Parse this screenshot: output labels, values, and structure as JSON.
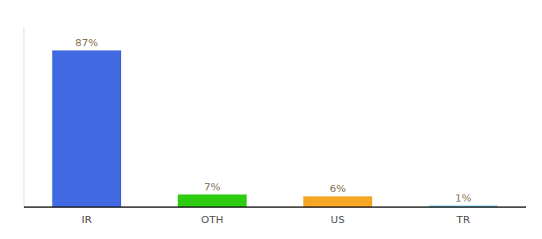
{
  "chart_data": {
    "type": "bar",
    "categories": [
      "IR",
      "OTH",
      "US",
      "TR"
    ],
    "values": [
      87,
      7,
      6,
      1
    ],
    "value_labels": [
      "87%",
      "7%",
      "6%",
      "1%"
    ],
    "colors": [
      "#4169e1",
      "#2ecc10",
      "#f5a623",
      "#87ceeb"
    ],
    "ylim": [
      0,
      100
    ],
    "data_labels": true,
    "grid": false,
    "tick_labels": "x"
  }
}
